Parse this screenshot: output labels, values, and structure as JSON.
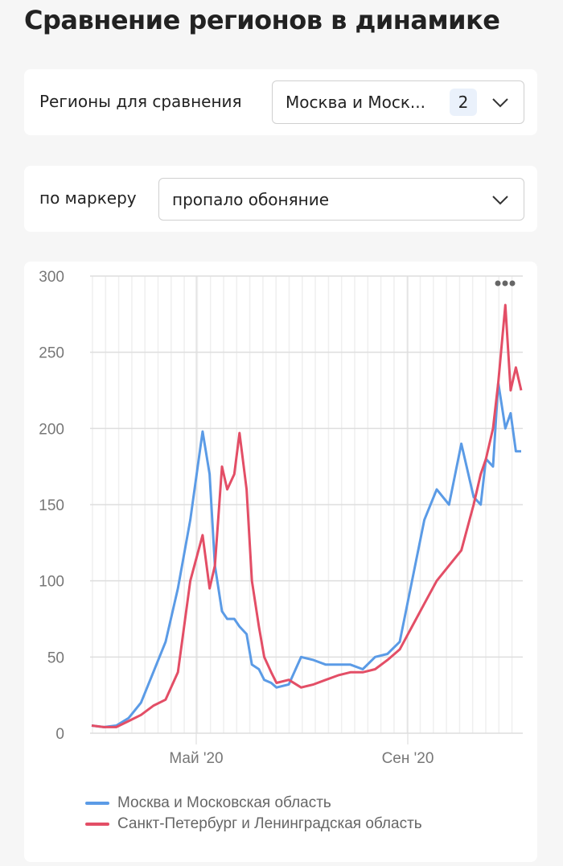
{
  "page": {
    "title": "Сравнение регионов в динамике"
  },
  "filters": {
    "regions": {
      "label": "Регионы для сравнения",
      "value": "Москва и Моск...",
      "count": "2"
    },
    "marker": {
      "label": "по маркеру",
      "value": "пропало обоняние"
    }
  },
  "chart": {
    "menu_icon": "more-dots-icon"
  },
  "chart_data": {
    "type": "line",
    "title": "",
    "xlabel": "",
    "ylabel": "",
    "ylim": [
      0,
      300
    ],
    "yticks": [
      0,
      50,
      100,
      150,
      200,
      250,
      300
    ],
    "xtick_labels": [
      "Май '20",
      "Сен '20"
    ],
    "grid": true,
    "legend_position": "bottom",
    "x": [
      "Мар-01",
      "Мар-08",
      "Мар-15",
      "Мар-22",
      "Мар-29",
      "Апр-05",
      "Апр-12",
      "Апр-19",
      "Апр-26",
      "Май-03",
      "Май-07",
      "Май-10",
      "Май-14",
      "Май-17",
      "Май-21",
      "Май-24",
      "Май-28",
      "Май-31",
      "Июн-04",
      "Июн-07",
      "Июн-11",
      "Июн-14",
      "Июн-21",
      "Июн-28",
      "Июл-05",
      "Июл-12",
      "Июл-19",
      "Июл-26",
      "Авг-02",
      "Авг-09",
      "Авг-16",
      "Авг-23",
      "Авг-30",
      "Сен-06",
      "Сен-13",
      "Сен-20",
      "Сен-27",
      "Окт-04",
      "Окт-08",
      "Окт-11",
      "Окт-15",
      "Окт-18",
      "Окт-22",
      "Окт-25",
      "Окт-28",
      "Окт-31"
    ],
    "series": [
      {
        "name": "Москва и Московская область",
        "color": "#5b9be6",
        "values": [
          5,
          4,
          5,
          10,
          20,
          40,
          60,
          95,
          140,
          198,
          170,
          110,
          80,
          75,
          75,
          70,
          65,
          45,
          42,
          35,
          33,
          30,
          32,
          50,
          48,
          45,
          45,
          45,
          42,
          50,
          52,
          60,
          100,
          140,
          160,
          150,
          190,
          155,
          150,
          180,
          175,
          230,
          200,
          210,
          185,
          185
        ]
      },
      {
        "name": "Санкт-Петербург и Ленинградская область",
        "color": "#e34e66",
        "values": [
          5,
          4,
          4,
          8,
          12,
          18,
          22,
          40,
          100,
          130,
          95,
          110,
          175,
          160,
          170,
          197,
          160,
          100,
          70,
          50,
          40,
          33,
          35,
          30,
          32,
          35,
          38,
          40,
          40,
          42,
          48,
          55,
          70,
          85,
          100,
          110,
          120,
          150,
          170,
          180,
          200,
          230,
          281,
          225,
          240,
          225
        ]
      }
    ]
  },
  "legend": {
    "items": [
      {
        "label": "Москва и Московская область",
        "color": "#5b9be6"
      },
      {
        "label": "Санкт-Петербург и Ленинградская область",
        "color": "#e34e66"
      }
    ]
  }
}
